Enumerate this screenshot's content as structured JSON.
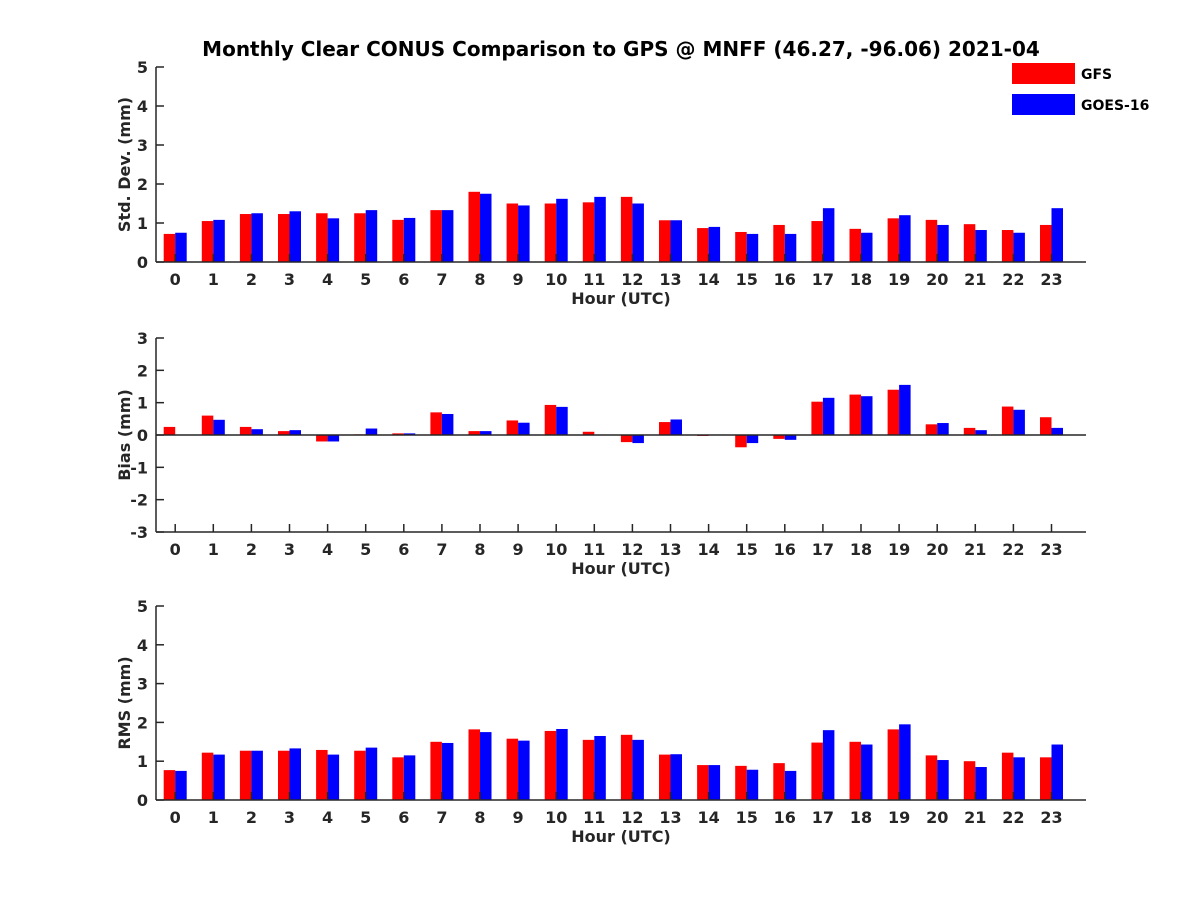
{
  "chart_data": [
    {
      "type": "bar",
      "title": "Monthly Clear CONUS Comparison to GPS @ MNFF (46.27, -96.06) 2021-04",
      "xlabel": "Hour (UTC)",
      "ylabel": "Std. Dev. (mm)",
      "ylim": [
        0,
        5
      ],
      "yticks": [
        0,
        1,
        2,
        3,
        4,
        5
      ],
      "categories": [
        "0",
        "1",
        "2",
        "3",
        "4",
        "5",
        "6",
        "7",
        "8",
        "9",
        "10",
        "11",
        "12",
        "13",
        "14",
        "15",
        "16",
        "17",
        "18",
        "19",
        "20",
        "21",
        "22",
        "23"
      ],
      "series": [
        {
          "name": "GFS",
          "color": "#ff0000",
          "values": [
            0.72,
            1.05,
            1.23,
            1.23,
            1.25,
            1.25,
            1.08,
            1.33,
            1.8,
            1.5,
            1.5,
            1.53,
            1.67,
            1.07,
            0.87,
            0.77,
            0.95,
            1.05,
            0.85,
            1.12,
            1.08,
            0.97,
            0.82,
            0.95
          ]
        },
        {
          "name": "GOES-16",
          "color": "#0000ff",
          "values": [
            0.75,
            1.08,
            1.25,
            1.3,
            1.12,
            1.33,
            1.13,
            1.33,
            1.75,
            1.45,
            1.62,
            1.67,
            1.5,
            1.07,
            0.9,
            0.72,
            0.72,
            1.38,
            0.75,
            1.2,
            0.95,
            0.82,
            0.75,
            1.38
          ]
        }
      ],
      "legend": "top-right",
      "grid": false
    },
    {
      "type": "bar",
      "xlabel": "Hour (UTC)",
      "ylabel": "Bias (mm)",
      "ylim": [
        -3,
        3
      ],
      "yticks": [
        -3,
        -2,
        -1,
        0,
        1,
        2,
        3
      ],
      "categories": [
        "0",
        "1",
        "2",
        "3",
        "4",
        "5",
        "6",
        "7",
        "8",
        "9",
        "10",
        "11",
        "12",
        "13",
        "14",
        "15",
        "16",
        "17",
        "18",
        "19",
        "20",
        "21",
        "22",
        "23"
      ],
      "series": [
        {
          "name": "GFS",
          "color": "#ff0000",
          "values": [
            0.25,
            0.6,
            0.25,
            0.12,
            -0.2,
            0.02,
            0.05,
            0.7,
            0.12,
            0.45,
            0.93,
            0.1,
            -0.22,
            0.4,
            -0.03,
            -0.38,
            -0.12,
            1.03,
            1.25,
            1.4,
            0.33,
            0.22,
            0.88,
            0.55
          ]
        },
        {
          "name": "GOES-16",
          "color": "#0000ff",
          "values": [
            0.0,
            0.47,
            0.18,
            0.15,
            -0.2,
            0.2,
            0.05,
            0.65,
            0.12,
            0.38,
            0.87,
            0.0,
            -0.25,
            0.48,
            0.0,
            -0.25,
            -0.15,
            1.15,
            1.2,
            1.55,
            0.37,
            0.15,
            0.78,
            0.22
          ]
        }
      ],
      "grid": false
    },
    {
      "type": "bar",
      "xlabel": "Hour (UTC)",
      "ylabel": "RMS (mm)",
      "ylim": [
        0,
        5
      ],
      "yticks": [
        0,
        1,
        2,
        3,
        4,
        5
      ],
      "categories": [
        "0",
        "1",
        "2",
        "3",
        "4",
        "5",
        "6",
        "7",
        "8",
        "9",
        "10",
        "11",
        "12",
        "13",
        "14",
        "15",
        "16",
        "17",
        "18",
        "19",
        "20",
        "21",
        "22",
        "23"
      ],
      "series": [
        {
          "name": "GFS",
          "color": "#ff0000",
          "values": [
            0.77,
            1.22,
            1.27,
            1.27,
            1.29,
            1.27,
            1.1,
            1.5,
            1.82,
            1.58,
            1.78,
            1.55,
            1.68,
            1.17,
            0.9,
            0.88,
            0.95,
            1.48,
            1.5,
            1.82,
            1.15,
            1.0,
            1.22,
            1.1
          ]
        },
        {
          "name": "GOES-16",
          "color": "#0000ff",
          "values": [
            0.75,
            1.17,
            1.27,
            1.33,
            1.17,
            1.35,
            1.15,
            1.47,
            1.75,
            1.53,
            1.83,
            1.65,
            1.55,
            1.18,
            0.9,
            0.78,
            0.75,
            1.8,
            1.43,
            1.95,
            1.03,
            0.85,
            1.1,
            1.43
          ]
        }
      ],
      "grid": false
    }
  ]
}
